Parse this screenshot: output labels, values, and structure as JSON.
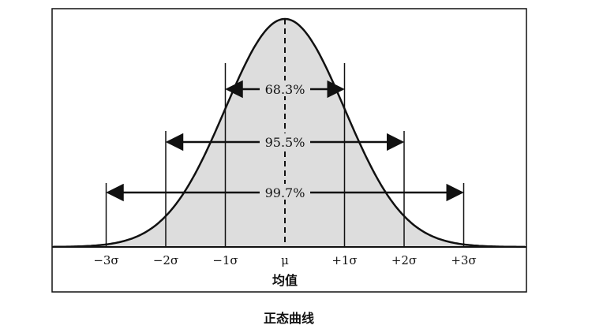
{
  "figure": {
    "axis_title": "均值",
    "caption": "正态曲线",
    "tick_labels": [
      "−3σ",
      "−2σ",
      "−1σ",
      "μ",
      "+1σ",
      "+2σ",
      "+3σ"
    ],
    "intervals": [
      {
        "label": "68.3%",
        "from_sigma": -1,
        "to_sigma": 1
      },
      {
        "label": "95.5%",
        "from_sigma": -2,
        "to_sigma": 2
      },
      {
        "label": "99.7%",
        "from_sigma": -3,
        "to_sigma": 3
      }
    ],
    "colors": {
      "fill": "#dddddd",
      "stroke": "#111111"
    }
  }
}
